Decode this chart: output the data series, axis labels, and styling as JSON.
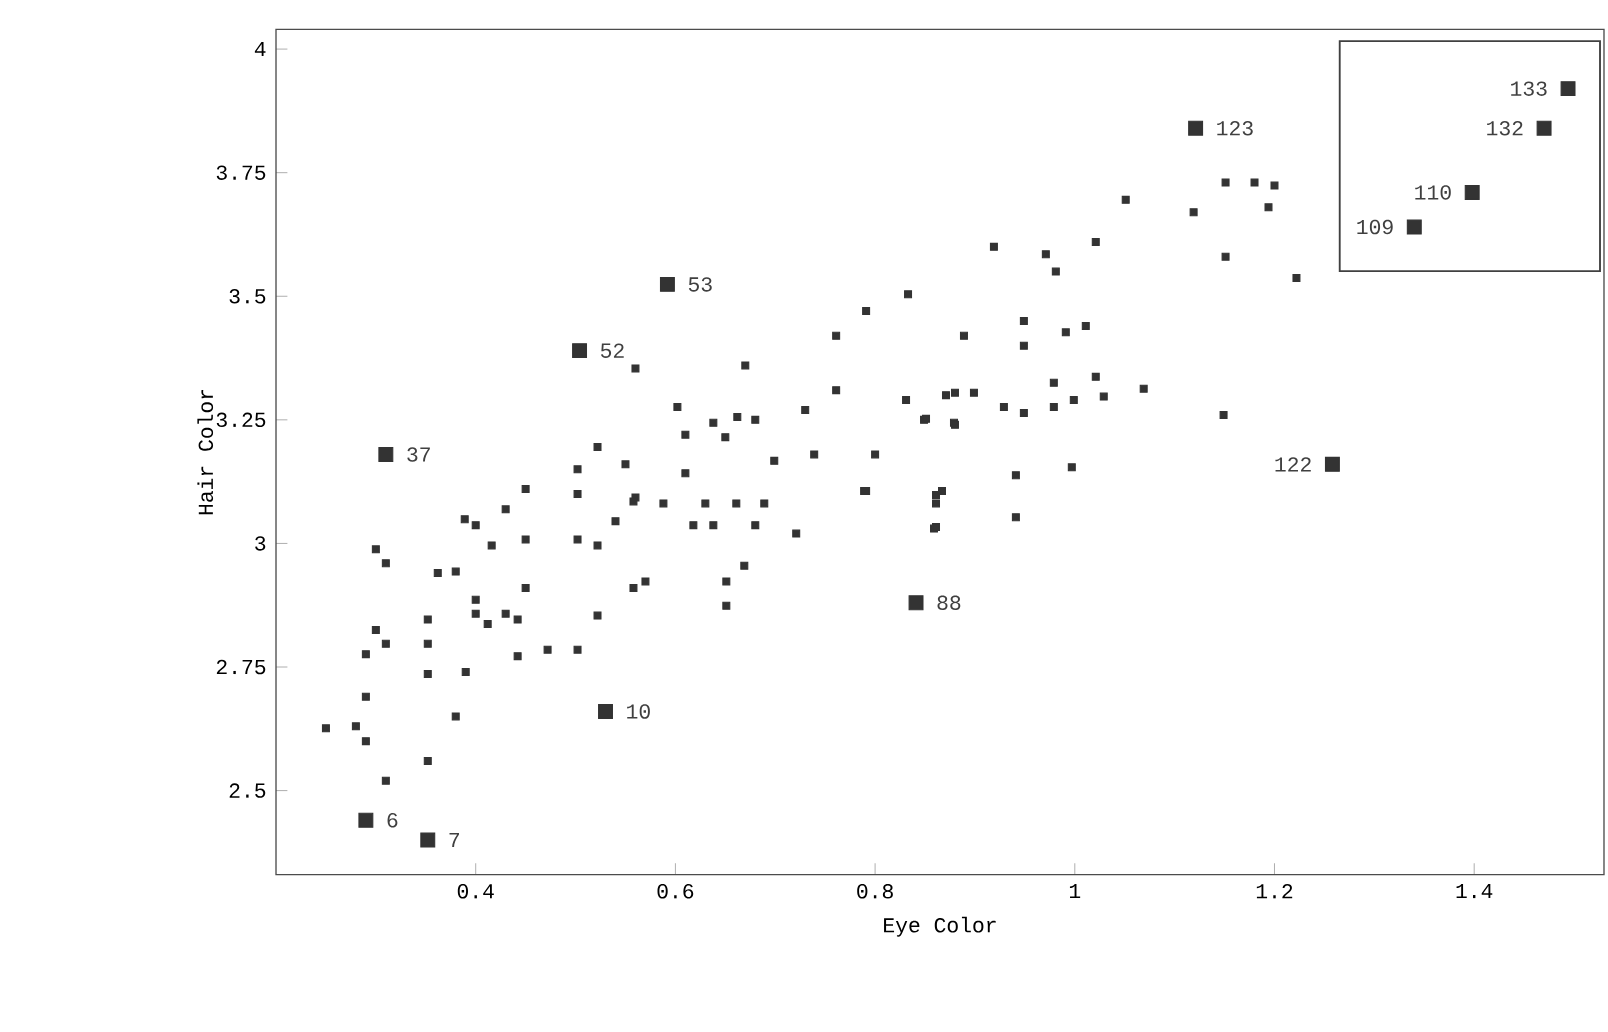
{
  "chart_data": {
    "type": "scatter",
    "xlabel": "Eye Color",
    "ylabel": "Hair Color",
    "marker": "square",
    "grid": false,
    "xlim": [
      0.2,
      1.53
    ],
    "ylim": [
      2.33,
      4.04
    ],
    "xticks": [
      0.4,
      0.6,
      0.8,
      1,
      1.2,
      1.4
    ],
    "yticks": [
      2.5,
      2.75,
      3,
      3.25,
      3.5,
      3.75,
      4
    ],
    "series": [
      {
        "color": "#333333",
        "x": [
          0.833,
          0.791,
          0.761,
          0.56,
          0.67,
          0.602,
          0.638,
          0.662,
          0.68,
          0.73,
          0.761,
          0.831,
          0.871,
          0.849,
          0.879,
          0.61,
          0.65,
          0.522,
          0.699,
          0.739,
          0.8,
          0.502,
          0.55,
          0.61,
          0.45,
          0.502,
          0.56,
          0.791,
          0.867,
          0.919,
          0.971,
          0.981,
          1.021,
          1.051,
          1.119,
          1.151,
          1.18,
          1.2,
          1.194,
          1.151,
          1.222,
          0.889,
          0.949,
          0.949,
          0.991,
          1.011,
          0.979,
          1.021,
          1.069,
          1.029,
          0.999,
          0.979,
          0.949,
          0.929,
          0.899,
          0.88,
          0.88,
          0.851,
          1.149,
          0.941,
          0.997,
          0.861,
          0.859,
          0.941,
          0.558,
          0.588,
          0.63,
          0.661,
          0.689,
          0.789,
          0.861,
          0.861,
          0.43,
          0.389,
          0.4,
          0.54,
          0.618,
          0.638,
          0.68,
          0.721,
          0.416,
          0.45,
          0.502,
          0.522,
          0.3,
          0.31,
          0.362,
          0.38,
          0.45,
          0.669,
          0.651,
          0.558,
          0.57,
          0.651,
          0.4,
          0.4,
          0.412,
          0.43,
          0.442,
          0.522,
          0.352,
          0.3,
          0.31,
          0.29,
          0.352,
          0.442,
          0.472,
          0.502,
          0.352,
          0.39,
          0.29,
          0.38,
          0.25,
          0.28,
          0.29,
          0.352,
          0.31
        ],
        "values": [
          3.504,
          3.47,
          3.42,
          3.354,
          3.36,
          3.276,
          3.244,
          3.256,
          3.25,
          3.27,
          3.31,
          3.29,
          3.3,
          3.25,
          3.244,
          3.22,
          3.215,
          3.195,
          3.167,
          3.18,
          3.18,
          3.15,
          3.16,
          3.142,
          3.11,
          3.1,
          3.093,
          3.106,
          3.106,
          3.6,
          3.585,
          3.55,
          3.61,
          3.695,
          3.67,
          3.73,
          3.73,
          3.724,
          3.68,
          3.58,
          3.537,
          3.42,
          3.45,
          3.4,
          3.427,
          3.44,
          3.325,
          3.337,
          3.313,
          3.297,
          3.29,
          3.276,
          3.264,
          3.276,
          3.305,
          3.305,
          3.24,
          3.252,
          3.26,
          3.138,
          3.154,
          3.098,
          3.03,
          3.053,
          3.085,
          3.081,
          3.081,
          3.081,
          3.081,
          3.106,
          3.081,
          3.033,
          3.069,
          3.049,
          3.037,
          3.045,
          3.037,
          3.037,
          3.037,
          3.02,
          2.996,
          3.008,
          3.008,
          2.996,
          2.988,
          2.96,
          2.94,
          2.943,
          2.91,
          2.955,
          2.923,
          2.91,
          2.923,
          2.874,
          2.886,
          2.858,
          2.837,
          2.858,
          2.846,
          2.854,
          2.846,
          2.825,
          2.797,
          2.776,
          2.797,
          2.772,
          2.785,
          2.785,
          2.736,
          2.74,
          2.69,
          2.65,
          2.626,
          2.63,
          2.6,
          2.56,
          2.52
        ]
      },
      {
        "color": "#333333",
        "x": [
          0.592,
          0.504,
          0.31,
          1.121,
          1.494,
          1.47,
          1.398,
          1.34,
          1.258,
          0.841,
          0.53,
          0.29,
          0.352
        ],
        "values": [
          3.524,
          3.39,
          3.18,
          3.84,
          3.92,
          3.84,
          3.71,
          3.64,
          3.16,
          2.88,
          2.66,
          2.44,
          2.4
        ]
      }
    ],
    "annotations": [
      {
        "text": "53",
        "x": 0.592,
        "y": 3.524
      },
      {
        "text": "52",
        "x": 0.504,
        "y": 3.39
      },
      {
        "text": "37",
        "x": 0.31,
        "y": 3.18
      },
      {
        "text": "123",
        "x": 1.121,
        "y": 3.84
      },
      {
        "text": "133",
        "x": 1.494,
        "y": 3.92
      },
      {
        "text": "132",
        "x": 1.47,
        "y": 3.84
      },
      {
        "text": "110",
        "x": 1.398,
        "y": 3.71
      },
      {
        "text": "109",
        "x": 1.34,
        "y": 3.64
      },
      {
        "text": "122",
        "x": 1.258,
        "y": 3.16
      },
      {
        "text": "88",
        "x": 0.841,
        "y": 2.88
      },
      {
        "text": "10",
        "x": 0.53,
        "y": 2.66
      },
      {
        "text": "6",
        "x": 0.29,
        "y": 2.44
      },
      {
        "text": "7",
        "x": 0.352,
        "y": 2.4
      }
    ]
  }
}
